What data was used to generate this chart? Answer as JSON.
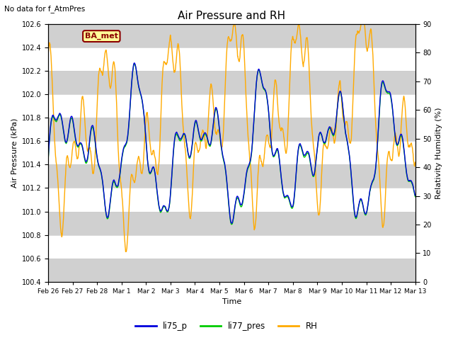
{
  "title": "Air Pressure and RH",
  "subtitle": "No data for f_AtmPres",
  "xlabel": "Time",
  "ylabel_left": "Air Pressure (kPa)",
  "ylabel_right": "Relativity Humidity (%)",
  "ylim_left": [
    100.4,
    102.6
  ],
  "ylim_right": [
    0,
    90
  ],
  "yticks_left": [
    100.4,
    100.6,
    100.8,
    101.0,
    101.2,
    101.4,
    101.6,
    101.8,
    102.0,
    102.2,
    102.4,
    102.6
  ],
  "yticks_right": [
    0,
    10,
    20,
    30,
    40,
    50,
    60,
    70,
    80,
    90
  ],
  "xtick_labels": [
    "Feb 26",
    "Feb 27",
    "Feb 28",
    "Mar 1",
    "Mar 2",
    "Mar 3",
    "Mar 4",
    "Mar 5",
    "Mar 6",
    "Mar 7",
    "Mar 8",
    "Mar 9",
    "Mar 10",
    "Mar 11",
    "Mar 12",
    "Mar 13"
  ],
  "color_li75": "#0000dd",
  "color_li77": "#00cc00",
  "color_rh": "#ffaa00",
  "legend_labels": [
    "li75_p",
    "li77_pres",
    "RH"
  ],
  "box_label": "BA_met",
  "box_color": "#8B0000",
  "box_bg": "#ffff99",
  "stripe_light": "#e8e8e8",
  "stripe_dark": "#d0d0d0",
  "plot_bg": "#e8e8e8"
}
